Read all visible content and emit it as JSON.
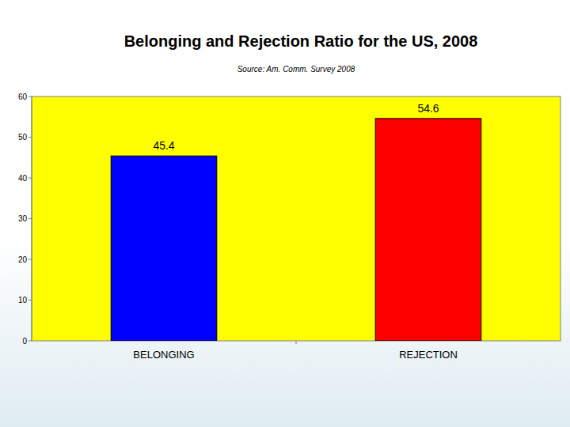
{
  "chart_data": {
    "type": "bar",
    "title": "Belonging and Rejection Ratio for the US, 2008",
    "subtitle": "Source: Am. Comm. Survey 2008",
    "categories": [
      "BELONGING",
      "REJECTION"
    ],
    "values": [
      45.4,
      54.6
    ],
    "colors": [
      "#0000ff",
      "#ff0000"
    ],
    "ylim": [
      0,
      60
    ],
    "yticks": [
      0,
      10,
      20,
      30,
      40,
      50,
      60
    ],
    "grid": false,
    "data_labels": true
  }
}
